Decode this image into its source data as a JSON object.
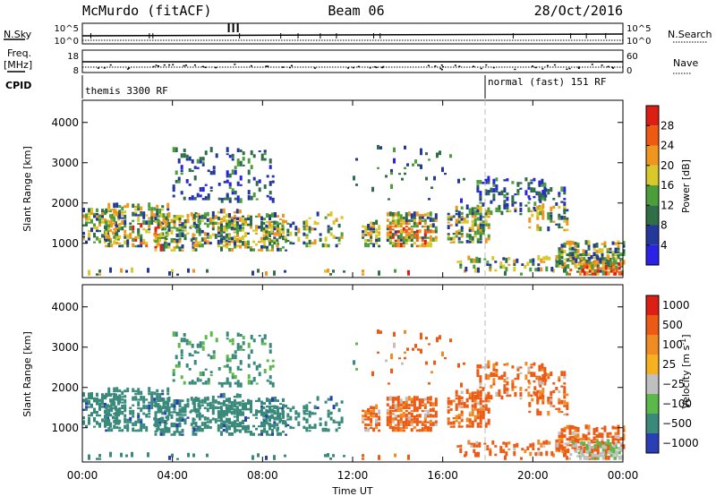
{
  "header": {
    "station": "McMurdo (fitACF)",
    "beam": "Beam 06",
    "date": "28/Oct/2016"
  },
  "aux": {
    "nsky_label": "N.Sky",
    "nsky_ticks": [
      "10^5",
      "10^0"
    ],
    "nsearch_label": "N.Search",
    "nsearch_ticks": [
      "10^5",
      "10^0"
    ],
    "freq_label": "Freq.",
    "freq_unit": "[MHz]",
    "freq_ticks": [
      "18",
      "8"
    ],
    "nave_label": "Nave",
    "nave_ticks": [
      "60",
      "0"
    ],
    "cpid_label": "CPID",
    "cpid_segments": [
      "themis 3300 RF",
      "normal (fast) 151 RF"
    ]
  },
  "colors": {
    "power": [
      "#2a22e6",
      "#24389c",
      "#2f6e46",
      "#4c9e3a",
      "#d8c82a",
      "#f0961e",
      "#ee5a12",
      "#dc1e14"
    ],
    "velocity": [
      "#2a3eb6",
      "#3a8a7c",
      "#5cb84a",
      "#c0c0c0",
      "#f6b020",
      "#f08a22",
      "#ec5a14",
      "#dc1e14"
    ]
  },
  "chart_data": [
    {
      "type": "heatmap",
      "panel": "power",
      "ylabel": "Slant Range [km]",
      "yticks": [
        "1000",
        "2000",
        "3000",
        "4000"
      ],
      "ylim": [
        150,
        4550
      ],
      "xlim": [
        "00:00",
        "24:00"
      ],
      "colorbar_label": "Power [dB]",
      "colorbar_ticks": [
        "4",
        "8",
        "12",
        "16",
        "20",
        "24",
        "28"
      ],
      "colorbar_range": [
        0,
        32
      ]
    },
    {
      "type": "heatmap",
      "panel": "velocity",
      "ylabel": "Slant Range [km]",
      "yticks": [
        "1000",
        "2000",
        "3000",
        "4000"
      ],
      "ylim": [
        150,
        4550
      ],
      "xlim": [
        "00:00",
        "24:00"
      ],
      "xlabel": "Time UT",
      "xticks": [
        "00:00",
        "04:00",
        "08:00",
        "12:00",
        "16:00",
        "20:00",
        "00:00"
      ],
      "colorbar_label": "Velocity [m s",
      "colorbar_unit_sup": "-1",
      "colorbar_unit_close": "]",
      "colorbar_ticks": [
        "1000",
        "500",
        "100",
        "25",
        "−25",
        "−100",
        "−500",
        "−1000"
      ]
    }
  ]
}
